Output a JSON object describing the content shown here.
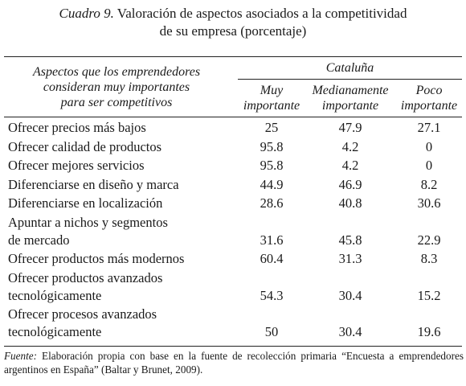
{
  "title": {
    "label": "Cuadro 9.",
    "line1": " Valoración de aspectos asociados a la competitividad",
    "line2": "de su empresa (porcentaje)"
  },
  "header": {
    "aspects_line1": "Aspectos que los emprendedores",
    "aspects_line2": "consideran muy importantes",
    "aspects_line3": "para ser competitivos",
    "region": "Cataluña",
    "columns": [
      {
        "line1": "Muy",
        "line2": "importante"
      },
      {
        "line1": "Medianamente",
        "line2": "importante"
      },
      {
        "line1": "Poco",
        "line2": "importante"
      }
    ]
  },
  "rows": [
    {
      "lines": [
        "Ofrecer precios más bajos"
      ],
      "values": [
        "25",
        "47.9",
        "27.1"
      ]
    },
    {
      "lines": [
        "Ofrecer calidad de productos"
      ],
      "values": [
        "95.8",
        "4.2",
        "0"
      ]
    },
    {
      "lines": [
        "Ofrecer mejores servicios"
      ],
      "values": [
        "95.8",
        "4.2",
        "0"
      ]
    },
    {
      "lines": [
        "Diferenciarse en diseño y marca"
      ],
      "values": [
        "44.9",
        "46.9",
        "8.2"
      ]
    },
    {
      "lines": [
        "Diferenciarse en localización"
      ],
      "values": [
        "28.6",
        "40.8",
        "30.6"
      ]
    },
    {
      "lines": [
        "Apuntar a nichos y segmentos",
        "de mercado"
      ],
      "values": [
        "31.6",
        "45.8",
        "22.9"
      ]
    },
    {
      "lines": [
        "Ofrecer productos más modernos"
      ],
      "values": [
        "60.4",
        "31.3",
        "8.3"
      ]
    },
    {
      "lines": [
        "Ofrecer productos avanzados",
        "tecnológicamente"
      ],
      "values": [
        "54.3",
        "30.4",
        "15.2"
      ]
    },
    {
      "lines": [
        "Ofrecer procesos avanzados",
        "tecnológicamente"
      ],
      "values": [
        "50",
        "30.4",
        "19.6"
      ]
    }
  ],
  "footnote": {
    "label": "Fuente:",
    "text": " Elaboración propia con base en la fuente de recolección primaria “Encuesta a emprendedores argentinos en España” (Baltar y Brunet, 2009)."
  }
}
